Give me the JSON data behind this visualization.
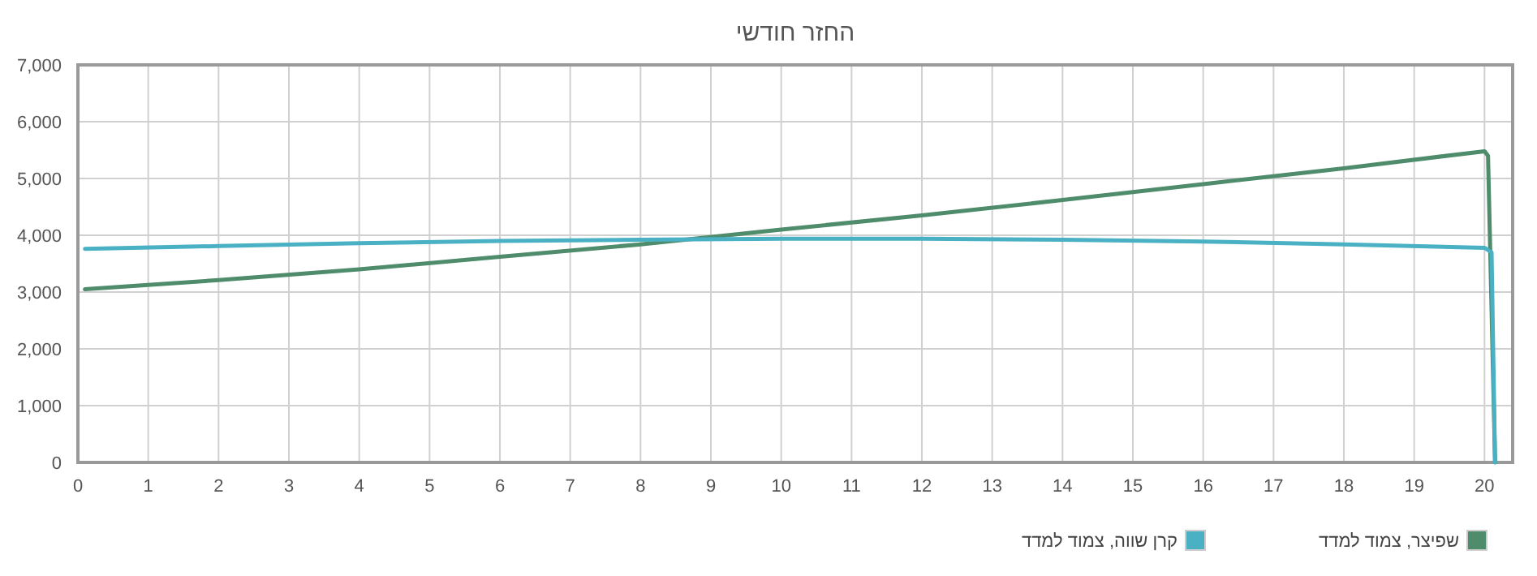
{
  "chart_data": {
    "type": "line",
    "title": "החזר חודשי",
    "series": [
      {
        "name": "שפיצר, צמוד למדד",
        "color": "#4e8c6c",
        "x": [
          0.1,
          2,
          4,
          6,
          8,
          10,
          12,
          14,
          16,
          18,
          20,
          20.05,
          20.15
        ],
        "values": [
          3050,
          3210,
          3400,
          3620,
          3840,
          4100,
          4350,
          4620,
          4900,
          5180,
          5480,
          5400,
          0
        ]
      },
      {
        "name": "קרן שווה, צמוד למדד",
        "color": "#4ab0c4",
        "x": [
          0.1,
          2,
          4,
          6,
          8,
          10,
          12,
          14,
          16,
          18,
          20,
          20.1,
          20.15
        ],
        "values": [
          3760,
          3810,
          3860,
          3900,
          3920,
          3940,
          3940,
          3920,
          3890,
          3840,
          3780,
          3700,
          0
        ]
      }
    ],
    "xlim": [
      0,
      20.4
    ],
    "xticks": [
      0,
      1,
      2,
      3,
      4,
      5,
      6,
      7,
      8,
      9,
      10,
      11,
      12,
      13,
      14,
      15,
      16,
      17,
      18,
      19,
      20
    ],
    "ylim": [
      0,
      7000
    ],
    "yticks": [
      0,
      {
        "value": 1000,
        "label": "1,000"
      },
      {
        "value": 2000,
        "label": "2,000"
      },
      {
        "value": 3000,
        "label": "3,000"
      },
      {
        "value": 4000,
        "label": "4,000"
      },
      {
        "value": 5000,
        "label": "5,000"
      },
      {
        "value": 6000,
        "label": "6,000"
      },
      {
        "value": 7000,
        "label": "7,000"
      }
    ],
    "grid": true,
    "legend": "bottom right",
    "marker": "none",
    "line_style": "solid"
  }
}
